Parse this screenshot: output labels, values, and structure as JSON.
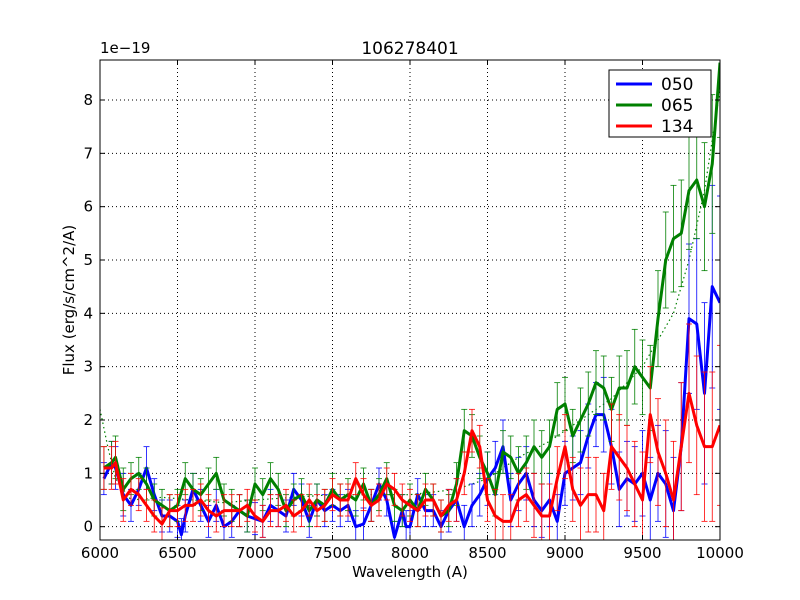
{
  "chart_data": {
    "type": "line",
    "title": "106278401",
    "xlabel": "Wavelength (A)",
    "ylabel": "Flux (erg/s/cm^2/A)",
    "y_scale_label": "1e−19",
    "xlim": [
      6000,
      10000
    ],
    "ylim": [
      -0.25,
      8.75
    ],
    "xticks": [
      6000,
      6500,
      7000,
      7500,
      8000,
      8500,
      9000,
      9500,
      10000
    ],
    "yticks": [
      0,
      1,
      2,
      3,
      4,
      5,
      6,
      7,
      8
    ],
    "grid": true,
    "legend_position": "top-right",
    "series": [
      {
        "name": "050",
        "color": "#0000ff",
        "x": [
          6025,
          6075,
          6100,
          6150,
          6200,
          6250,
          6300,
          6350,
          6400,
          6450,
          6500,
          6525,
          6550,
          6600,
          6650,
          6700,
          6750,
          6800,
          6850,
          6900,
          6950,
          7000,
          7050,
          7100,
          7150,
          7200,
          7250,
          7300,
          7350,
          7400,
          7450,
          7500,
          7550,
          7600,
          7650,
          7700,
          7750,
          7800,
          7850,
          7900,
          7950,
          7975,
          8000,
          8050,
          8100,
          8150,
          8200,
          8250,
          8300,
          8350,
          8400,
          8450,
          8500,
          8550,
          8600,
          8650,
          8700,
          8750,
          8800,
          8850,
          8900,
          8950,
          9000,
          9050,
          9100,
          9150,
          9200,
          9250,
          9300,
          9350,
          9400,
          9450,
          9500,
          9550,
          9600,
          9650,
          9700,
          9750,
          9800,
          9850,
          9900,
          9950,
          10000
        ],
        "y": [
          0.9,
          1.2,
          1.1,
          0.6,
          0.4,
          0.7,
          1.1,
          0.6,
          0.2,
          0.2,
          0.1,
          -0.15,
          0.2,
          0.7,
          0.4,
          0.1,
          0.4,
          0.0,
          0.1,
          0.3,
          0.2,
          0.15,
          0.1,
          0.4,
          0.3,
          0.2,
          0.7,
          0.5,
          0.1,
          0.5,
          0.3,
          0.4,
          0.3,
          0.4,
          0.0,
          0.05,
          0.4,
          0.8,
          0.5,
          -0.2,
          0.3,
          0.0,
          0.0,
          0.6,
          0.3,
          0.3,
          0.0,
          0.3,
          0.5,
          0.0,
          0.4,
          0.6,
          0.9,
          1.1,
          1.5,
          0.5,
          0.8,
          1.0,
          0.5,
          0.3,
          0.5,
          0.1,
          1.0,
          1.1,
          1.2,
          1.7,
          2.1,
          2.1,
          1.5,
          0.7,
          0.9,
          0.8,
          1.0,
          0.5,
          1.0,
          0.8,
          0.3,
          1.5,
          3.9,
          3.8,
          2.5,
          4.5,
          4.2
        ],
        "err": [
          0.3,
          0.4,
          0.4,
          0.4,
          0.3,
          0.3,
          0.4,
          0.3,
          0.3,
          0.3,
          0.3,
          0.3,
          0.3,
          0.3,
          0.3,
          0.3,
          0.3,
          0.3,
          0.3,
          0.3,
          0.3,
          0.3,
          0.3,
          0.3,
          0.3,
          0.3,
          0.3,
          0.3,
          0.3,
          0.3,
          0.3,
          0.3,
          0.3,
          0.3,
          0.3,
          0.3,
          0.3,
          0.3,
          0.3,
          0.3,
          0.3,
          0.3,
          0.3,
          0.3,
          0.3,
          0.3,
          0.3,
          0.4,
          0.4,
          0.4,
          0.4,
          0.4,
          0.5,
          0.5,
          0.5,
          0.5,
          0.5,
          0.5,
          0.5,
          0.5,
          0.5,
          0.5,
          0.6,
          0.6,
          0.6,
          0.6,
          0.6,
          0.7,
          0.7,
          0.7,
          0.7,
          0.7,
          0.8,
          0.8,
          0.9,
          1.0,
          1.0,
          1.2,
          1.4,
          1.6,
          1.7,
          1.9,
          2.0
        ]
      },
      {
        "name": "065",
        "color": "#008000",
        "x": [
          6025,
          6075,
          6100,
          6150,
          6200,
          6250,
          6300,
          6350,
          6400,
          6450,
          6500,
          6550,
          6600,
          6650,
          6700,
          6750,
          6800,
          6850,
          6900,
          6950,
          7000,
          7050,
          7100,
          7150,
          7200,
          7250,
          7300,
          7350,
          7400,
          7450,
          7500,
          7550,
          7600,
          7650,
          7700,
          7750,
          7800,
          7850,
          7900,
          7950,
          8000,
          8050,
          8100,
          8150,
          8200,
          8250,
          8300,
          8350,
          8400,
          8450,
          8500,
          8550,
          8600,
          8650,
          8700,
          8750,
          8800,
          8850,
          8900,
          8950,
          9000,
          9050,
          9100,
          9150,
          9200,
          9250,
          9300,
          9350,
          9400,
          9450,
          9500,
          9550,
          9600,
          9650,
          9700,
          9750,
          9800,
          9850,
          9900,
          9950,
          10000
        ],
        "y": [
          1.1,
          1.2,
          1.3,
          0.7,
          0.9,
          1.0,
          0.8,
          0.5,
          0.4,
          0.3,
          0.4,
          0.9,
          0.7,
          0.6,
          0.8,
          1.0,
          0.5,
          0.4,
          0.3,
          0.2,
          0.8,
          0.6,
          0.9,
          0.7,
          0.3,
          0.5,
          0.6,
          0.3,
          0.5,
          0.4,
          0.7,
          0.5,
          0.6,
          0.5,
          0.8,
          0.4,
          0.6,
          0.9,
          0.4,
          0.3,
          0.5,
          0.3,
          0.7,
          0.5,
          0.2,
          0.3,
          0.8,
          1.8,
          1.7,
          1.3,
          1.0,
          0.6,
          1.4,
          1.3,
          1.0,
          1.2,
          1.5,
          1.3,
          1.5,
          2.2,
          2.3,
          1.7,
          2.0,
          2.3,
          2.7,
          2.6,
          2.2,
          2.6,
          2.6,
          3.0,
          2.8,
          2.6,
          3.9,
          5.0,
          5.4,
          5.5,
          6.3,
          6.5,
          6.0,
          6.8,
          8.7
        ],
        "err": [
          0.4,
          0.4,
          0.4,
          0.4,
          0.3,
          0.3,
          0.3,
          0.3,
          0.3,
          0.3,
          0.3,
          0.3,
          0.3,
          0.3,
          0.3,
          0.3,
          0.3,
          0.3,
          0.3,
          0.3,
          0.3,
          0.3,
          0.3,
          0.3,
          0.3,
          0.3,
          0.3,
          0.3,
          0.3,
          0.3,
          0.3,
          0.3,
          0.3,
          0.3,
          0.3,
          0.3,
          0.3,
          0.3,
          0.3,
          0.3,
          0.3,
          0.3,
          0.3,
          0.3,
          0.3,
          0.3,
          0.4,
          0.4,
          0.4,
          0.4,
          0.4,
          0.4,
          0.4,
          0.4,
          0.5,
          0.5,
          0.5,
          0.5,
          0.5,
          0.5,
          0.5,
          0.5,
          0.6,
          0.6,
          0.6,
          0.6,
          0.6,
          0.6,
          0.7,
          0.7,
          0.7,
          0.8,
          0.9,
          0.9,
          1.0,
          1.0,
          1.1,
          1.1,
          1.2,
          1.3,
          1.4
        ]
      },
      {
        "name": "134",
        "color": "#ff0000",
        "x": [
          6025,
          6075,
          6100,
          6150,
          6200,
          6250,
          6300,
          6350,
          6400,
          6450,
          6500,
          6550,
          6600,
          6650,
          6700,
          6750,
          6800,
          6850,
          6900,
          6950,
          7000,
          7050,
          7100,
          7150,
          7200,
          7250,
          7300,
          7350,
          7400,
          7450,
          7500,
          7550,
          7600,
          7650,
          7700,
          7750,
          7800,
          7850,
          7900,
          7950,
          8000,
          8050,
          8100,
          8150,
          8200,
          8250,
          8300,
          8350,
          8400,
          8450,
          8500,
          8550,
          8600,
          8650,
          8700,
          8750,
          8800,
          8850,
          8900,
          8950,
          9000,
          9050,
          9100,
          9150,
          9200,
          9250,
          9300,
          9350,
          9400,
          9450,
          9500,
          9550,
          9600,
          9650,
          9700,
          9750,
          9800,
          9850,
          9900,
          9950,
          10000
        ],
        "y": [
          1.1,
          1.1,
          1.2,
          0.5,
          0.7,
          0.6,
          0.4,
          0.2,
          0.05,
          0.3,
          0.3,
          0.4,
          0.4,
          0.5,
          0.3,
          0.2,
          0.3,
          0.3,
          0.3,
          0.4,
          0.2,
          0.1,
          0.3,
          0.3,
          0.4,
          0.2,
          0.3,
          0.5,
          0.3,
          0.4,
          0.6,
          0.5,
          0.5,
          0.9,
          0.6,
          0.4,
          0.5,
          0.8,
          0.7,
          0.5,
          0.4,
          0.3,
          0.5,
          0.5,
          0.2,
          0.4,
          0.5,
          1.0,
          1.8,
          1.5,
          0.5,
          0.2,
          0.1,
          0.1,
          0.5,
          0.6,
          0.4,
          0.2,
          0.2,
          0.9,
          1.5,
          0.7,
          0.4,
          0.6,
          0.6,
          0.3,
          1.5,
          1.3,
          1.1,
          0.8,
          0.5,
          2.1,
          1.4,
          1.0,
          0.5,
          1.5,
          2.5,
          1.9,
          1.5,
          1.5,
          1.9
        ],
        "err": [
          0.4,
          0.4,
          0.4,
          0.4,
          0.3,
          0.3,
          0.3,
          0.3,
          0.3,
          0.3,
          0.3,
          0.3,
          0.3,
          0.3,
          0.3,
          0.3,
          0.3,
          0.3,
          0.3,
          0.3,
          0.3,
          0.3,
          0.3,
          0.3,
          0.3,
          0.3,
          0.3,
          0.3,
          0.3,
          0.3,
          0.3,
          0.3,
          0.3,
          0.3,
          0.3,
          0.3,
          0.3,
          0.3,
          0.3,
          0.3,
          0.3,
          0.3,
          0.3,
          0.3,
          0.3,
          0.3,
          0.4,
          0.4,
          0.4,
          0.4,
          0.4,
          0.5,
          0.5,
          0.5,
          0.5,
          0.5,
          0.6,
          0.6,
          0.6,
          0.6,
          0.6,
          0.6,
          0.7,
          0.7,
          0.7,
          0.7,
          0.8,
          0.8,
          0.8,
          0.8,
          0.9,
          0.9,
          1.0,
          1.0,
          1.1,
          1.2,
          1.3,
          1.3,
          1.4,
          1.4,
          1.5
        ]
      }
    ],
    "reference_line": {
      "color": "#008000",
      "x": [
        6000,
        6050,
        6100,
        6200,
        6400,
        6600,
        6800,
        7000,
        7500,
        8000,
        8300,
        8500,
        8700,
        8900,
        9100,
        9300,
        9500,
        9700,
        9800,
        9900,
        10000
      ],
      "y": [
        2.2,
        1.5,
        0.9,
        0.5,
        0.55,
        0.5,
        0.45,
        0.5,
        0.6,
        0.6,
        0.7,
        0.9,
        1.3,
        1.6,
        2.0,
        2.4,
        3.0,
        4.0,
        5.0,
        6.3,
        8.2
      ]
    }
  }
}
